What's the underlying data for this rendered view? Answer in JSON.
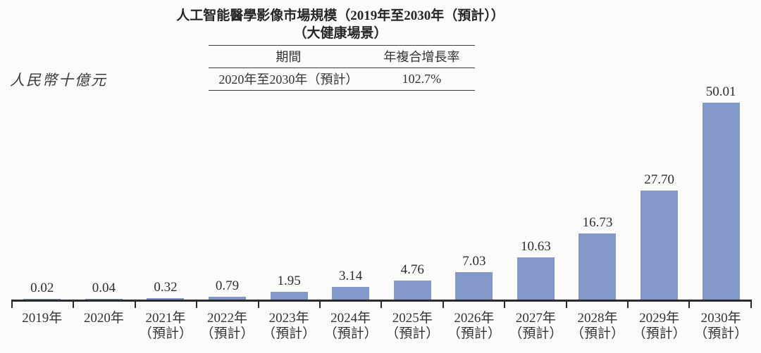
{
  "title": {
    "line1": "人工智能醫學影像市場規模（2019年至2030年（預計））",
    "line2": "（大健康場景）"
  },
  "unit_label": "人民幣十億元",
  "cagr_table": {
    "headers": [
      "期間",
      "年複合增長率"
    ],
    "rows": [
      [
        "2020年至2030年（預計）",
        "102.7%"
      ]
    ]
  },
  "chart_data": {
    "type": "bar",
    "title": "人工智能醫學影像市場規模（2019年至2030年（預計））（大健康場景）",
    "ylabel": "人民幣十億元",
    "categories": [
      "2019年",
      "2020年",
      "2021年（預計）",
      "2022年（預計）",
      "2023年（預計）",
      "2024年（預計）",
      "2025年（預計）",
      "2026年（預計）",
      "2027年（預計）",
      "2028年（預計）",
      "2029年（預計）",
      "2030年（預計）"
    ],
    "category_lines": [
      [
        "2019年"
      ],
      [
        "2020年"
      ],
      [
        "2021年",
        "（預計）"
      ],
      [
        "2022年",
        "（預計）"
      ],
      [
        "2023年",
        "（預計）"
      ],
      [
        "2024年",
        "（預計）"
      ],
      [
        "2025年",
        "（預計）"
      ],
      [
        "2026年",
        "（預計）"
      ],
      [
        "2027年",
        "（預計）"
      ],
      [
        "2028年",
        "（預計）"
      ],
      [
        "2029年",
        "（預計）"
      ],
      [
        "2030年",
        "（預計）"
      ]
    ],
    "values": [
      0.02,
      0.04,
      0.32,
      0.79,
      1.95,
      3.14,
      4.76,
      7.03,
      10.63,
      16.73,
      27.7,
      50.01
    ],
    "data_labels": true,
    "bar_color": "#8399c9",
    "axis_color": "#2b2b2b",
    "ylim": [
      0,
      52
    ],
    "grid": false,
    "legend": null
  }
}
